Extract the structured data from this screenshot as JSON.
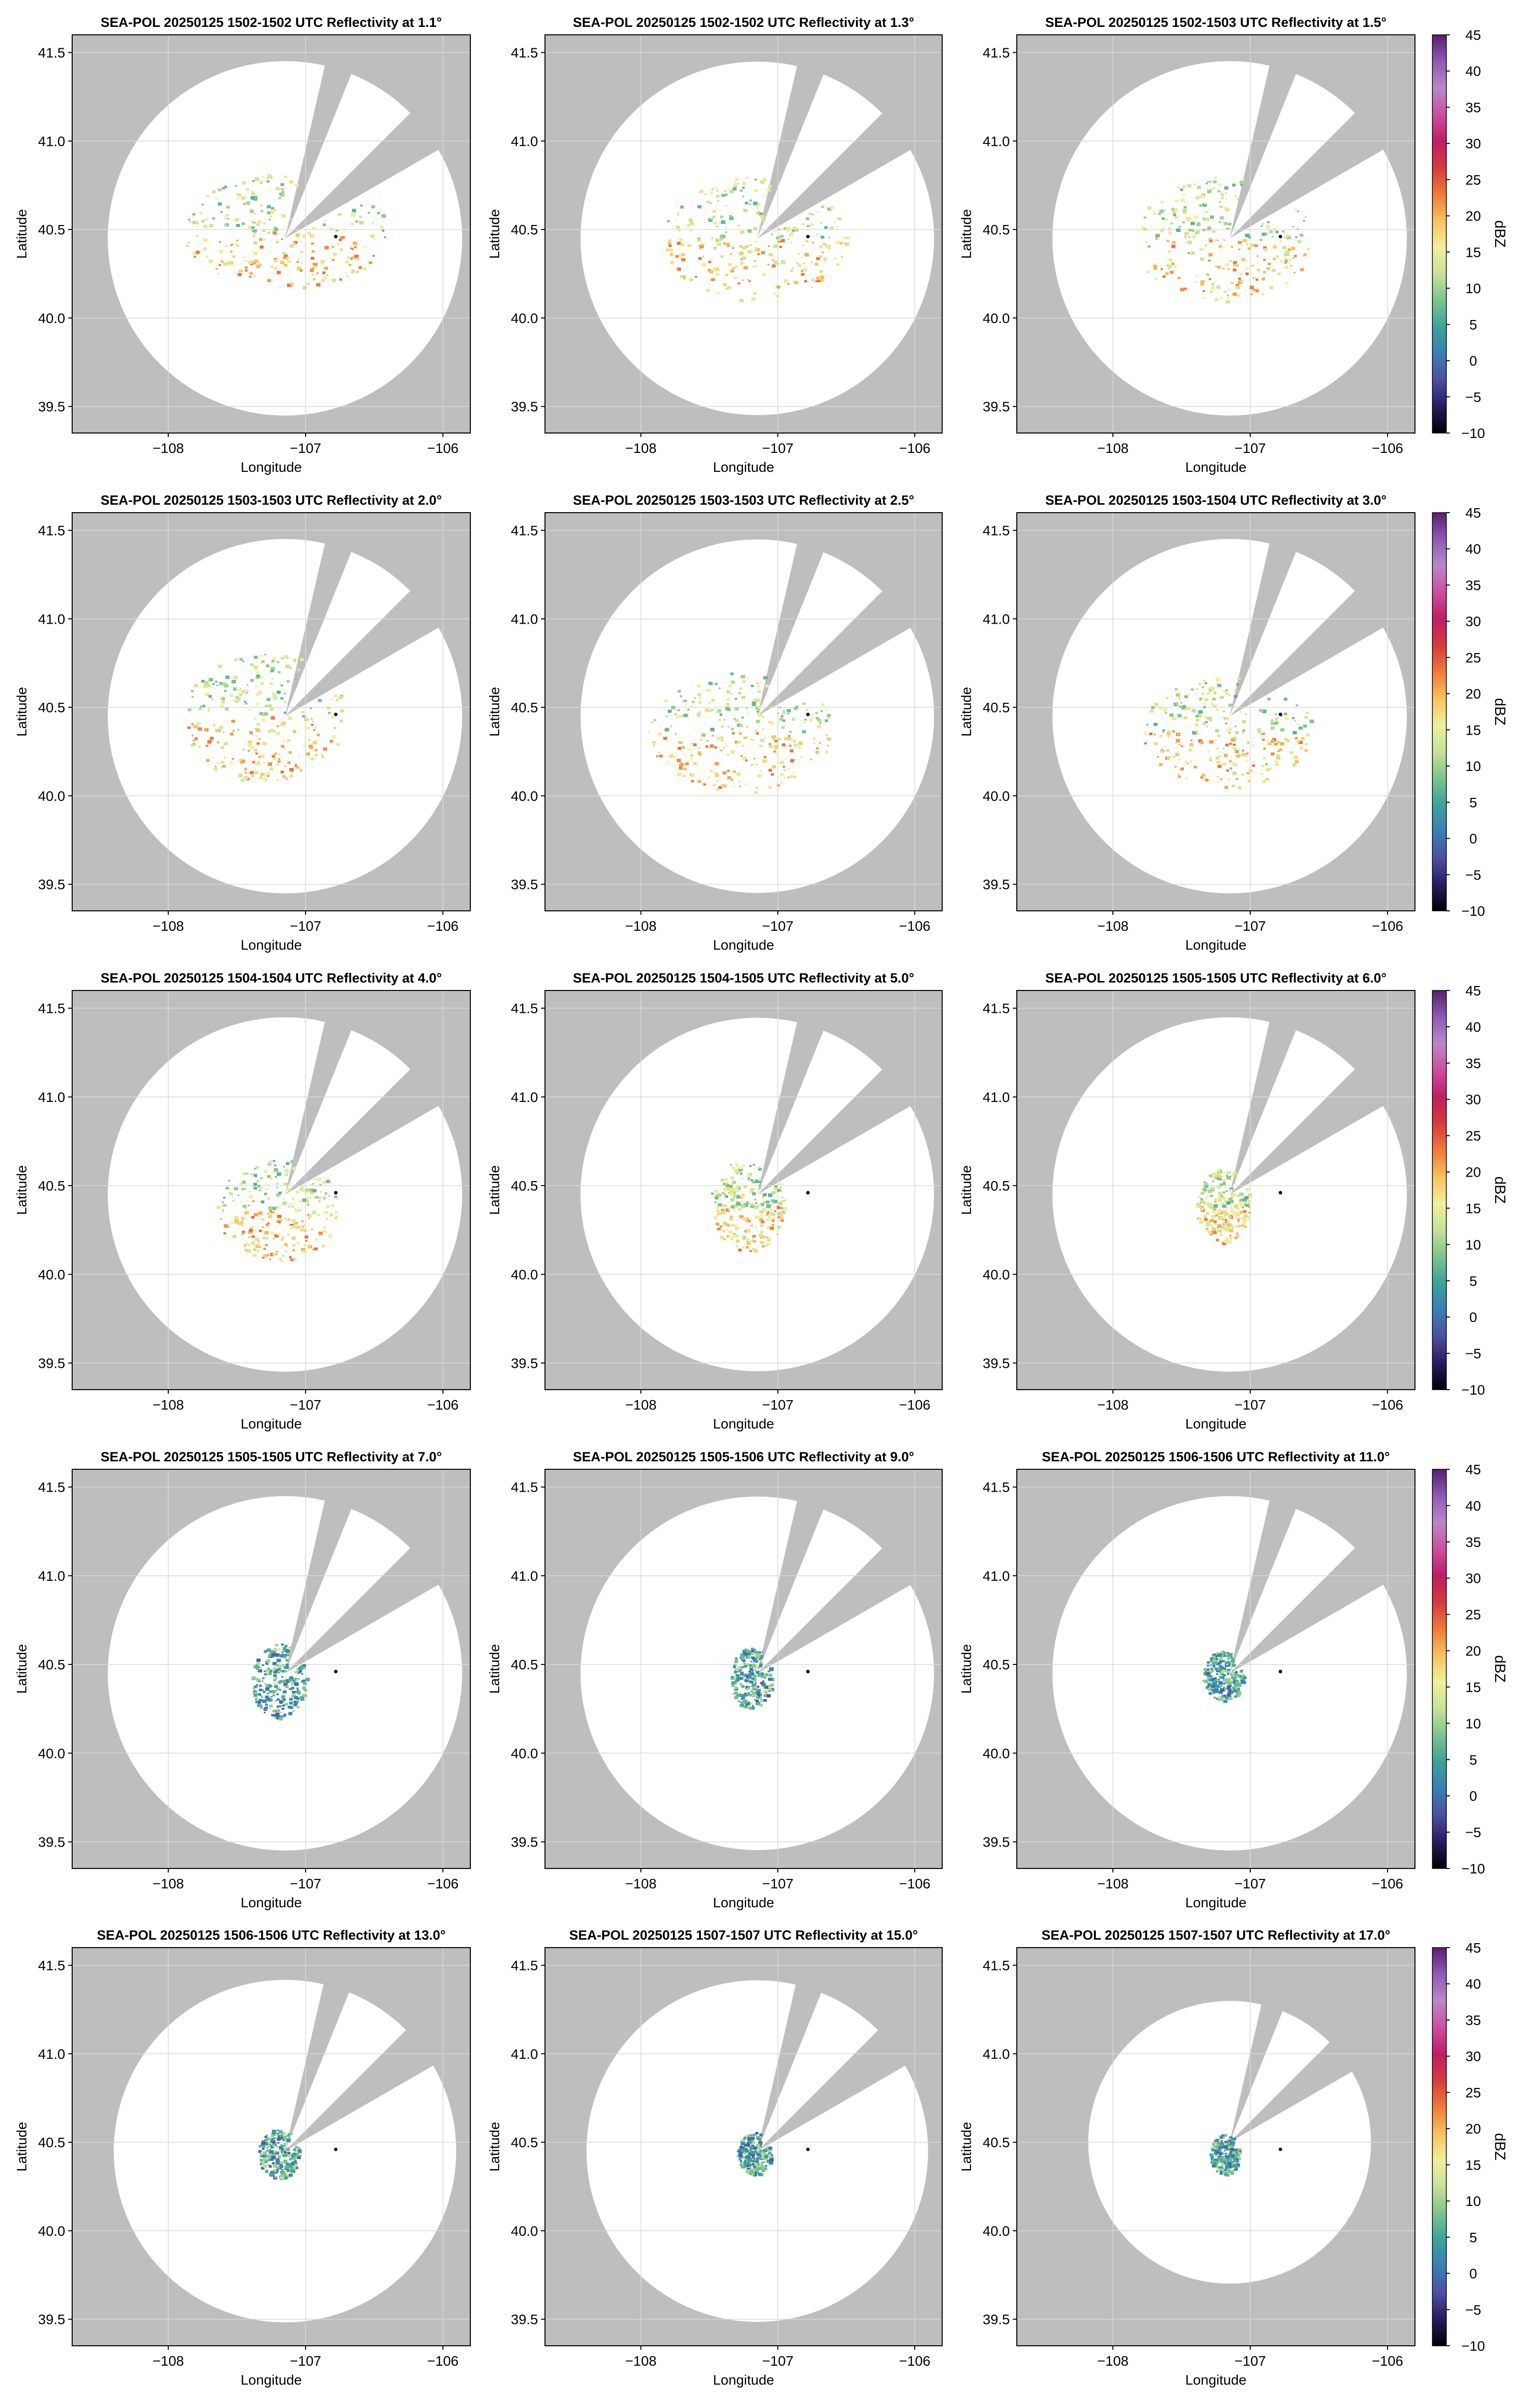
{
  "figure": {
    "xlabel": "Longitude",
    "ylabel": "Latitude",
    "x_ticks": [
      "−108",
      "−107",
      "−106"
    ],
    "y_ticks": [
      "39.5",
      "40.0",
      "40.5",
      "41.0",
      "41.5"
    ],
    "colorbar": {
      "label": "dBZ",
      "ticks": [
        "45",
        "40",
        "35",
        "30",
        "25",
        "20",
        "15",
        "10",
        "5",
        "0",
        "−5",
        "−10"
      ],
      "range": [
        -10,
        45
      ],
      "colormap": [
        "#000004",
        "#2a1a5e",
        "#4b4fa6",
        "#3a7fb4",
        "#3aa39b",
        "#7cc48c",
        "#c6e29a",
        "#f2ef9c",
        "#f6c25f",
        "#ee7a3c",
        "#d73a3c",
        "#bf1e63",
        "#cb4fa0",
        "#b988c8",
        "#8e5ab8",
        "#5a1e6e"
      ]
    }
  },
  "colors": {
    "masked_background": "#bebebe",
    "radar_coverage": "#ffffff",
    "grid": "#d9d9d9",
    "radar_marker": "#000000"
  },
  "chart_data": [
    {
      "type": "heatmap",
      "title": "SEA-POL 20250125 1502-1502 UTC Reflectivity at 1.1°",
      "xlabel": "Longitude",
      "ylabel": "Latitude",
      "xlim": [
        -108.7,
        -105.8
      ],
      "ylim": [
        39.35,
        41.6
      ],
      "radar_marker": {
        "lon": -106.78,
        "lat": 40.46
      },
      "echo_extent": {
        "lon": [
          -107.9,
          -106.4
        ],
        "lat": [
          40.17,
          40.82
        ]
      },
      "zlim": [
        -10,
        45
      ],
      "grid": true
    },
    {
      "type": "heatmap",
      "title": "SEA-POL 20250125 1502-1502 UTC Reflectivity at 1.3°",
      "xlabel": "Longitude",
      "ylabel": "Latitude",
      "xlim": [
        -108.7,
        -105.8
      ],
      "ylim": [
        39.35,
        41.6
      ],
      "radar_marker": {
        "lon": -106.78,
        "lat": 40.46
      },
      "echo_extent": {
        "lon": [
          -107.85,
          -106.5
        ],
        "lat": [
          40.1,
          40.8
        ]
      },
      "zlim": [
        -10,
        45
      ],
      "grid": true
    },
    {
      "type": "heatmap",
      "title": "SEA-POL 20250125 1502-1503 UTC Reflectivity at 1.5°",
      "xlabel": "Longitude",
      "ylabel": "Latitude",
      "xlim": [
        -108.7,
        -105.8
      ],
      "ylim": [
        39.35,
        41.6
      ],
      "radar_marker": {
        "lon": -106.78,
        "lat": 40.46
      },
      "echo_extent": {
        "lon": [
          -107.85,
          -106.55
        ],
        "lat": [
          40.1,
          40.8
        ]
      },
      "zlim": [
        -10,
        45
      ],
      "grid": true
    },
    {
      "type": "heatmap",
      "title": "SEA-POL 20250125 1503-1503 UTC Reflectivity at 2.0°",
      "xlabel": "Longitude",
      "ylabel": "Latitude",
      "xlim": [
        -108.7,
        -105.8
      ],
      "ylim": [
        39.35,
        41.6
      ],
      "radar_marker": {
        "lon": -106.78,
        "lat": 40.46
      },
      "echo_extent": {
        "lon": [
          -107.9,
          -106.7
        ],
        "lat": [
          40.08,
          40.82
        ]
      },
      "zlim": [
        -10,
        45
      ],
      "grid": true
    },
    {
      "type": "heatmap",
      "title": "SEA-POL 20250125 1503-1503 UTC Reflectivity at 2.5°",
      "xlabel": "Longitude",
      "ylabel": "Latitude",
      "xlim": [
        -108.7,
        -105.8
      ],
      "ylim": [
        39.35,
        41.6
      ],
      "radar_marker": {
        "lon": -106.78,
        "lat": 40.46
      },
      "echo_extent": {
        "lon": [
          -107.95,
          -106.6
        ],
        "lat": [
          40.02,
          40.7
        ]
      },
      "zlim": [
        -10,
        45
      ],
      "grid": true
    },
    {
      "type": "heatmap",
      "title": "SEA-POL 20250125 1503-1504 UTC Reflectivity at 3.0°",
      "xlabel": "Longitude",
      "ylabel": "Latitude",
      "xlim": [
        -108.7,
        -105.8
      ],
      "ylim": [
        39.35,
        41.6
      ],
      "radar_marker": {
        "lon": -106.78,
        "lat": 40.46
      },
      "echo_extent": {
        "lon": [
          -107.8,
          -106.55
        ],
        "lat": [
          40.05,
          40.68
        ]
      },
      "zlim": [
        -10,
        45
      ],
      "grid": true
    },
    {
      "type": "heatmap",
      "title": "SEA-POL 20250125 1504-1504 UTC Reflectivity at 4.0°",
      "xlabel": "Longitude",
      "ylabel": "Latitude",
      "xlim": [
        -108.7,
        -105.8
      ],
      "ylim": [
        39.35,
        41.6
      ],
      "radar_marker": {
        "lon": -106.78,
        "lat": 40.46
      },
      "echo_extent": {
        "lon": [
          -107.65,
          -106.75
        ],
        "lat": [
          40.08,
          40.65
        ]
      },
      "zlim": [
        -10,
        45
      ],
      "grid": true
    },
    {
      "type": "heatmap",
      "title": "SEA-POL 20250125 1504-1505 UTC Reflectivity at 5.0°",
      "xlabel": "Longitude",
      "ylabel": "Latitude",
      "xlim": [
        -108.7,
        -105.8
      ],
      "ylim": [
        39.35,
        41.6
      ],
      "radar_marker": {
        "lon": -106.78,
        "lat": 40.46
      },
      "echo_extent": {
        "lon": [
          -107.5,
          -106.95
        ],
        "lat": [
          40.13,
          40.65
        ]
      },
      "zlim": [
        -10,
        45
      ],
      "grid": true
    },
    {
      "type": "heatmap",
      "title": "SEA-POL 20250125 1505-1505 UTC Reflectivity at 6.0°",
      "xlabel": "Longitude",
      "ylabel": "Latitude",
      "xlim": [
        -108.7,
        -105.8
      ],
      "ylim": [
        39.35,
        41.6
      ],
      "radar_marker": {
        "lon": -106.78,
        "lat": 40.46
      },
      "echo_extent": {
        "lon": [
          -107.4,
          -107.0
        ],
        "lat": [
          40.18,
          40.6
        ]
      },
      "zlim": [
        -10,
        45
      ],
      "grid": true
    },
    {
      "type": "heatmap",
      "title": "SEA-POL 20250125 1505-1505 UTC Reflectivity at 7.0°",
      "xlabel": "Longitude",
      "ylabel": "Latitude",
      "xlim": [
        -108.7,
        -105.8
      ],
      "ylim": [
        39.35,
        41.6
      ],
      "radar_marker": {
        "lon": -106.78,
        "lat": 40.46
      },
      "echo_extent": {
        "lon": [
          -107.4,
          -107.0
        ],
        "lat": [
          40.2,
          40.62
        ]
      },
      "zlim": [
        -10,
        45
      ],
      "grid": true
    },
    {
      "type": "heatmap",
      "title": "SEA-POL 20250125 1505-1506 UTC Reflectivity at 9.0°",
      "xlabel": "Longitude",
      "ylabel": "Latitude",
      "xlim": [
        -108.7,
        -105.8
      ],
      "ylim": [
        39.35,
        41.6
      ],
      "radar_marker": {
        "lon": -106.78,
        "lat": 40.46
      },
      "echo_extent": {
        "lon": [
          -107.35,
          -107.05
        ],
        "lat": [
          40.25,
          40.6
        ]
      },
      "zlim": [
        -10,
        45
      ],
      "grid": true
    },
    {
      "type": "heatmap",
      "title": "SEA-POL 20250125 1506-1506 UTC Reflectivity at 11.0°",
      "xlabel": "Longitude",
      "ylabel": "Latitude",
      "xlim": [
        -108.7,
        -105.8
      ],
      "ylim": [
        39.35,
        41.6
      ],
      "radar_marker": {
        "lon": -106.78,
        "lat": 40.46
      },
      "echo_extent": {
        "lon": [
          -107.35,
          -107.05
        ],
        "lat": [
          40.3,
          40.58
        ]
      },
      "zlim": [
        -10,
        45
      ],
      "grid": true
    },
    {
      "type": "heatmap",
      "title": "SEA-POL 20250125 1506-1506 UTC Reflectivity at 13.0°",
      "xlabel": "Longitude",
      "ylabel": "Latitude",
      "xlim": [
        -108.7,
        -105.8
      ],
      "ylim": [
        39.35,
        41.6
      ],
      "radar_marker": {
        "lon": -106.78,
        "lat": 40.46
      },
      "echo_extent": {
        "lon": [
          -107.35,
          -107.05
        ],
        "lat": [
          40.3,
          40.58
        ]
      },
      "zlim": [
        -10,
        45
      ],
      "grid": true
    },
    {
      "type": "heatmap",
      "title": "SEA-POL 20250125 1507-1507 UTC Reflectivity at 15.0°",
      "xlabel": "Longitude",
      "ylabel": "Latitude",
      "xlim": [
        -108.7,
        -105.8
      ],
      "ylim": [
        39.35,
        41.6
      ],
      "radar_marker": {
        "lon": -106.78,
        "lat": 40.46
      },
      "echo_extent": {
        "lon": [
          -107.3,
          -107.05
        ],
        "lat": [
          40.32,
          40.56
        ]
      },
      "zlim": [
        -10,
        45
      ],
      "grid": true
    },
    {
      "type": "heatmap",
      "title": "SEA-POL 20250125 1507-1507 UTC Reflectivity at 17.0°",
      "xlabel": "Longitude",
      "ylabel": "Latitude",
      "xlim": [
        -108.7,
        -105.8
      ],
      "ylim": [
        39.35,
        41.6
      ],
      "radar_marker": {
        "lon": -106.78,
        "lat": 40.46
      },
      "echo_extent": {
        "lon": [
          -107.3,
          -107.08
        ],
        "lat": [
          40.32,
          40.55
        ]
      },
      "zlim": [
        -10,
        45
      ],
      "grid": true
    }
  ]
}
